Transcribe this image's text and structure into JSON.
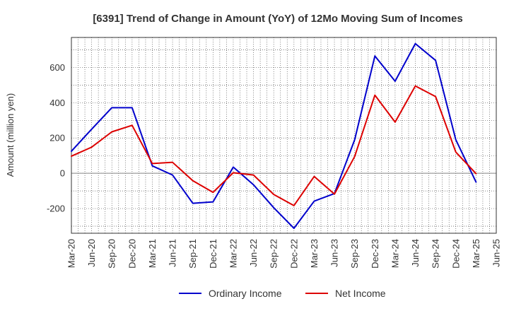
{
  "chart_data": {
    "type": "line",
    "title": "[6391]  Trend of Change in Amount (YoY) of 12Mo Moving Sum of Incomes",
    "xlabel": "",
    "ylabel": "Amount (million yen)",
    "x": [
      "Mar-20",
      "Jun-20",
      "Sep-20",
      "Dec-20",
      "Mar-21",
      "Jun-21",
      "Sep-21",
      "Dec-21",
      "Mar-22",
      "Jun-22",
      "Sep-22",
      "Dec-22",
      "Mar-23",
      "Jun-23",
      "Sep-23",
      "Dec-23",
      "Mar-24",
      "Jun-24",
      "Sep-24",
      "Dec-24",
      "Mar-25",
      "Jun-25"
    ],
    "ylim": [
      -340,
      770
    ],
    "yticks": [
      -200,
      0,
      200,
      400,
      600
    ],
    "grid": true,
    "legend_position": "bottom",
    "series": [
      {
        "name": "Ordinary Income",
        "color": "#0000cc",
        "values": [
          125,
          250,
          372,
          372,
          42,
          -10,
          -170,
          -162,
          35,
          -65,
          -195,
          -312,
          -158,
          -115,
          190,
          665,
          522,
          735,
          640,
          190,
          -50,
          null
        ]
      },
      {
        "name": "Net Income",
        "color": "#dd0000",
        "values": [
          97,
          148,
          235,
          272,
          55,
          62,
          -42,
          -108,
          3,
          -10,
          -120,
          -183,
          -18,
          -118,
          95,
          443,
          290,
          495,
          435,
          120,
          -2,
          null
        ]
      }
    ]
  }
}
